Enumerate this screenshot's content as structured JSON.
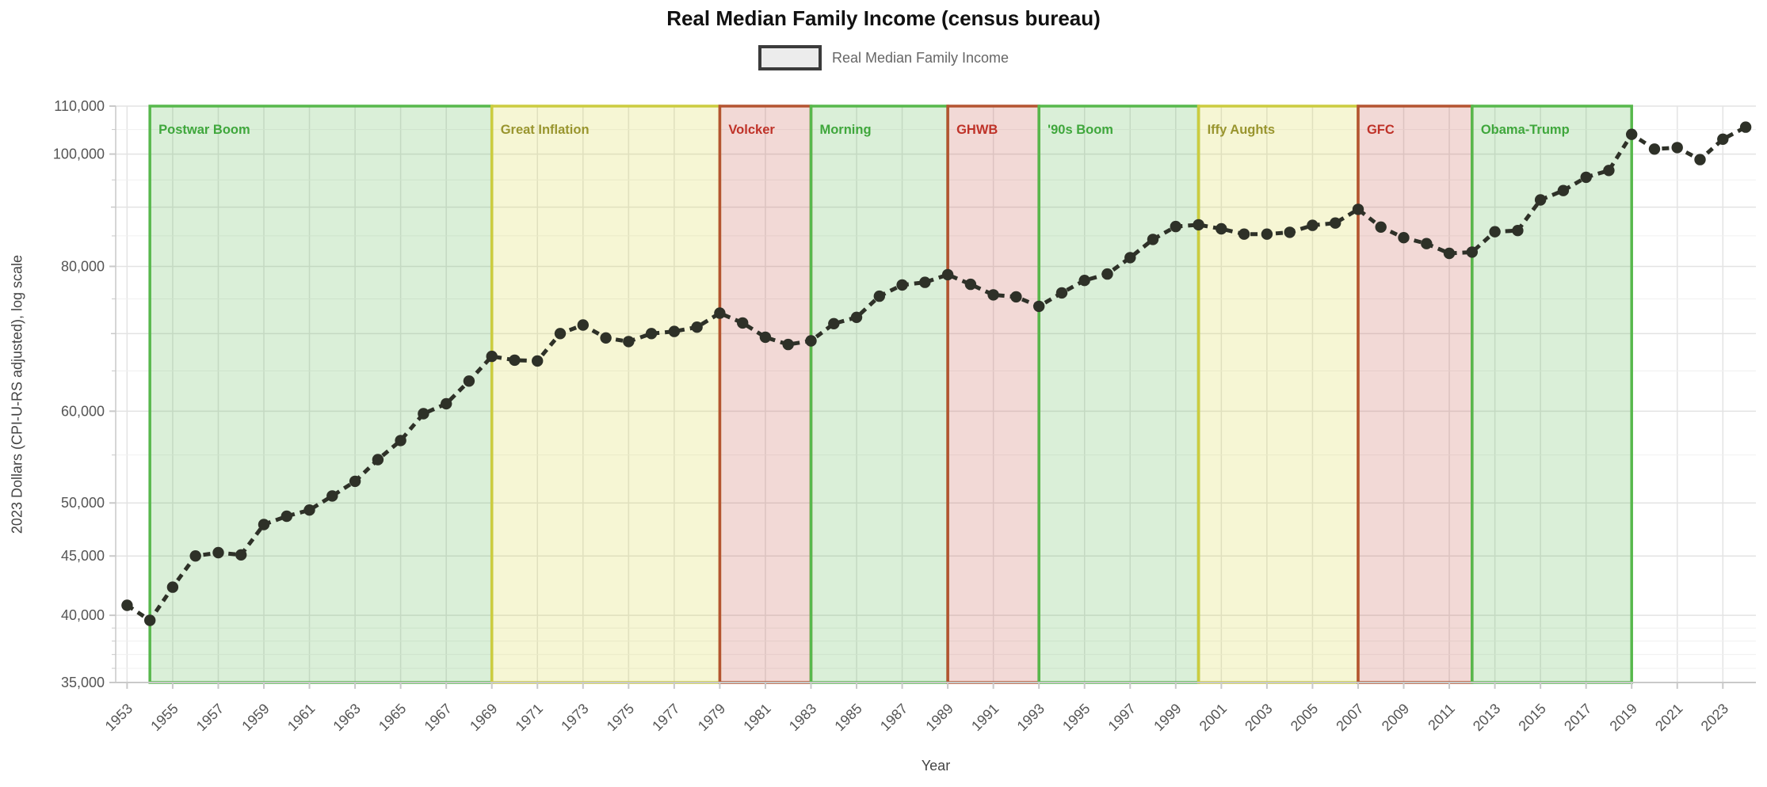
{
  "header": {
    "title": "Real Median Family Income (census bureau)"
  },
  "legend": {
    "items": [
      {
        "label": "Real Median Family Income"
      }
    ]
  },
  "axes": {
    "x": {
      "title": "Year",
      "tick_years": [
        1953,
        1955,
        1957,
        1959,
        1961,
        1963,
        1965,
        1967,
        1969,
        1971,
        1973,
        1975,
        1977,
        1979,
        1981,
        1983,
        1985,
        1987,
        1989,
        1991,
        1993,
        1995,
        1997,
        1999,
        2001,
        2003,
        2005,
        2007,
        2009,
        2011,
        2013,
        2015,
        2017,
        2019,
        2021,
        2023
      ]
    },
    "y": {
      "title": "2023 Dollars (CPI-U-RS adjusted), log scale",
      "labeled_ticks": [
        {
          "value": 35000,
          "label": "35,000"
        },
        {
          "value": 40000,
          "label": "40,000"
        },
        {
          "value": 45000,
          "label": "45,000"
        },
        {
          "value": 50000,
          "label": "50,000"
        },
        {
          "value": 60000,
          "label": "60,000"
        },
        {
          "value": 80000,
          "label": "80,000"
        },
        {
          "value": 100000,
          "label": "100,000"
        },
        {
          "value": 110000,
          "label": "110,000"
        }
      ],
      "unlabeled_major_ticks": [
        70000,
        90000
      ],
      "minor_ticks": [
        36000,
        37000,
        38000,
        39000,
        55000,
        65000,
        75000,
        85000,
        95000,
        105000
      ],
      "range": [
        35000,
        110000
      ],
      "scale": "log"
    }
  },
  "chart_data": {
    "type": "line",
    "title": "Real Median Family Income (census bureau)",
    "xlabel": "Year",
    "ylabel": "2023 Dollars (CPI-U-RS adjusted), log scale",
    "x_range": [
      1952.5,
      2024.45
    ],
    "y_range": [
      35000,
      110000
    ],
    "y_scale": "log",
    "grid": true,
    "legend_position": "top-center",
    "series": [
      {
        "name": "Real Median Family Income",
        "style": "dashed-line-with-markers",
        "x": [
          1953,
          1954,
          1955,
          1956,
          1957,
          1958,
          1959,
          1960,
          1961,
          1962,
          1963,
          1964,
          1965,
          1966,
          1967,
          1968,
          1969,
          1970,
          1971,
          1972,
          1973,
          1974,
          1975,
          1976,
          1977,
          1978,
          1979,
          1980,
          1981,
          1982,
          1983,
          1984,
          1985,
          1986,
          1987,
          1988,
          1989,
          1990,
          1991,
          1992,
          1993,
          1994,
          1995,
          1996,
          1997,
          1998,
          1999,
          2000,
          2001,
          2002,
          2003,
          2004,
          2005,
          2006,
          2007,
          2008,
          2009,
          2010,
          2011,
          2012,
          2013,
          2014,
          2015,
          2016,
          2017,
          2018,
          2019,
          2020,
          2021,
          2022,
          2023,
          2024
        ],
        "values": [
          40800,
          39600,
          42300,
          45000,
          45300,
          45100,
          47900,
          48700,
          49300,
          50700,
          52200,
          54500,
          56600,
          59700,
          60900,
          63700,
          66900,
          66400,
          66300,
          70000,
          71200,
          69400,
          68900,
          70000,
          70300,
          70900,
          72900,
          71500,
          69500,
          68500,
          69000,
          71400,
          72300,
          75400,
          77100,
          77500,
          78700,
          77200,
          75600,
          75300,
          73900,
          75900,
          77800,
          78800,
          81400,
          84400,
          86600,
          86900,
          86200,
          85300,
          85300,
          85600,
          86800,
          87200,
          89600,
          86500,
          84700,
          83700,
          82100,
          82300,
          85700,
          85900,
          91300,
          93000,
          95500,
          96800,
          104000,
          101000,
          101300,
          98900,
          103000,
          105500
        ]
      }
    ],
    "eras": [
      {
        "name": "Postwar Boom",
        "start": 1954,
        "end": 1969,
        "type": "green"
      },
      {
        "name": "Great Inflation",
        "start": 1969,
        "end": 1979,
        "type": "yellow"
      },
      {
        "name": "Volcker",
        "start": 1979,
        "end": 1983,
        "type": "red"
      },
      {
        "name": "Morning",
        "start": 1983,
        "end": 1989,
        "type": "green"
      },
      {
        "name": "GHWB",
        "start": 1989,
        "end": 1993,
        "type": "red"
      },
      {
        "name": "'90s Boom",
        "start": 1993,
        "end": 2000,
        "type": "green"
      },
      {
        "name": "Iffy Aughts",
        "start": 2000,
        "end": 2007,
        "type": "yellow"
      },
      {
        "name": "GFC",
        "start": 2007,
        "end": 2012,
        "type": "red"
      },
      {
        "name": "Obama-Trump",
        "start": 2012,
        "end": 2019,
        "type": "green"
      }
    ]
  },
  "colors": {
    "series": "#2e3128",
    "era_green_fill": "rgba(87,184,76,0.22)",
    "era_green_stroke": "#57b84c",
    "era_green_text": "#3fa73c",
    "era_yellow_fill": "rgba(214,212,60,0.22)",
    "era_yellow_stroke": "#cccc3f",
    "era_yellow_text": "#99952e",
    "era_red_fill": "rgba(196,84,70,0.22)",
    "era_red_stroke": "#b45431",
    "era_red_text": "#bf3228",
    "grid_major": "#e3e3e3",
    "grid_minor": "#f0f0f0",
    "axis_line": "#c9c9c9",
    "tick_text": "#555555",
    "legend_swatch_fill": "#ececec",
    "legend_swatch_border": "#3b3b3b",
    "legend_text": "#666666",
    "title_text": "#111111",
    "axis_title_text": "#444444"
  }
}
